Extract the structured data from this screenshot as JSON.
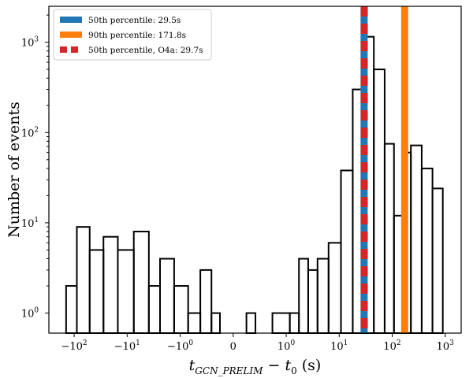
{
  "chart_data": {
    "type": "bar",
    "subtype": "histogram",
    "xscale": "symlog",
    "yscale": "log",
    "xlim": [
      -300,
      2000
    ],
    "ylim": [
      0.6,
      2500
    ],
    "ylabel": "Number of events",
    "xlabel": {
      "var": "t",
      "sub": "GCN_PRELIM",
      "minus": " − ",
      "var2": "t",
      "sub2": "0",
      "unit": " (s)"
    },
    "xticks": [
      {
        "value": -100,
        "base": "−10",
        "exp": "2"
      },
      {
        "value": -10,
        "base": "−10",
        "exp": "1"
      },
      {
        "value": -1,
        "base": "−10",
        "exp": "0"
      },
      {
        "value": 0,
        "base": "0",
        "exp": ""
      },
      {
        "value": 1,
        "base": "10",
        "exp": "0"
      },
      {
        "value": 10,
        "base": "10",
        "exp": "1"
      },
      {
        "value": 100,
        "base": "10",
        "exp": "2"
      },
      {
        "value": 1000,
        "base": "10",
        "exp": "3"
      }
    ],
    "yticks": [
      {
        "value": 1,
        "base": "10",
        "exp": "0"
      },
      {
        "value": 10,
        "base": "10",
        "exp": "1"
      },
      {
        "value": 100,
        "base": "10",
        "exp": "2"
      },
      {
        "value": 1000,
        "base": "10",
        "exp": "3"
      }
    ],
    "bins": [
      {
        "x0": -142,
        "x1": -89,
        "count": 2
      },
      {
        "x0": -89,
        "x1": -51,
        "count": 9
      },
      {
        "x0": -51,
        "x1": -28,
        "count": 5
      },
      {
        "x0": -28,
        "x1": -15,
        "count": 7
      },
      {
        "x0": -15,
        "x1": -7.5,
        "count": 5
      },
      {
        "x0": -7.5,
        "x1": -3.9,
        "count": 8
      },
      {
        "x0": -3.9,
        "x1": -2.4,
        "count": 2
      },
      {
        "x0": -2.4,
        "x1": -1.3,
        "count": 4
      },
      {
        "x0": -1.3,
        "x1": -0.85,
        "count": 2
      },
      {
        "x0": -0.85,
        "x1": -0.62,
        "count": 1
      },
      {
        "x0": -0.62,
        "x1": -0.41,
        "count": 3
      },
      {
        "x0": -0.41,
        "x1": -0.25,
        "count": 1
      },
      {
        "x0": 0.25,
        "x1": 0.42,
        "count": 1
      },
      {
        "x0": 0.74,
        "x1": 1.17,
        "count": 1
      },
      {
        "x0": 1.17,
        "x1": 1.74,
        "count": 1
      },
      {
        "x0": 1.74,
        "x1": 2.6,
        "count": 4
      },
      {
        "x0": 2.6,
        "x1": 3.9,
        "count": 3
      },
      {
        "x0": 3.9,
        "x1": 6.3,
        "count": 4
      },
      {
        "x0": 6.3,
        "x1": 10.8,
        "count": 6
      },
      {
        "x0": 10.8,
        "x1": 18,
        "count": 38
      },
      {
        "x0": 18,
        "x1": 28,
        "count": 300
      },
      {
        "x0": 28,
        "x1": 32,
        "count": 2050
      },
      {
        "x0": 32,
        "x1": 45,
        "count": 1150
      },
      {
        "x0": 45,
        "x1": 72,
        "count": 500
      },
      {
        "x0": 72,
        "x1": 108,
        "count": 75
      },
      {
        "x0": 108,
        "x1": 155,
        "count": 12
      },
      {
        "x0": 155,
        "x1": 225,
        "count": 60
      },
      {
        "x0": 225,
        "x1": 360,
        "count": 72
      },
      {
        "x0": 360,
        "x1": 575,
        "count": 40
      },
      {
        "x0": 575,
        "x1": 900,
        "count": 24
      }
    ],
    "vlines": [
      {
        "label": "50th percentile: 29.5s",
        "value": 29.5,
        "color": "#1f77b4",
        "style": "solid"
      },
      {
        "label": "90th percentile: 171.8s",
        "value": 171.8,
        "color": "#ff7f0e",
        "style": "solid"
      },
      {
        "label": "50th percentile, O4a: 29.7s",
        "value": 29.7,
        "color": "#d62728",
        "style": "dashed"
      }
    ],
    "legend_position": "top-left",
    "grid": false
  }
}
